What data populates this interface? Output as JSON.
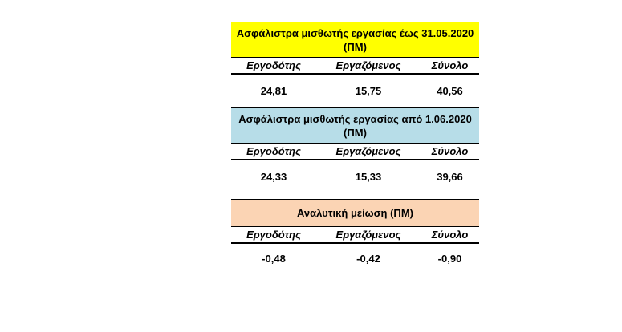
{
  "colors": {
    "section1_title_bg": "#ffff00",
    "section2_title_bg": "#b7dde8",
    "section3_title_bg": "#fbd4b4"
  },
  "sections": [
    {
      "title_line1": "Ασφάλιστρα μισθωτής εργασίας έως 31.05.2020",
      "title_line2": "(ΠΜ)",
      "headers": [
        "Εργοδότης",
        "Εργαζόμενος",
        "Σύνολο"
      ],
      "values": [
        "24,81",
        "15,75",
        "40,56"
      ]
    },
    {
      "title_line1": "Ασφάλιστρα μισθωτής εργασίας από 1.06.2020",
      "title_line2": "(ΠΜ)",
      "headers": [
        "Εργοδότης",
        "Εργαζόμενος",
        "Σύνολο"
      ],
      "values": [
        "24,33",
        "15,33",
        "39,66"
      ]
    },
    {
      "title_line1": "Αναλυτική μείωση (ΠΜ)",
      "headers": [
        "Εργοδότης",
        "Εργαζόμενος",
        "Σύνολο"
      ],
      "values": [
        "-0,48",
        "-0,42",
        "-0,90"
      ]
    }
  ]
}
